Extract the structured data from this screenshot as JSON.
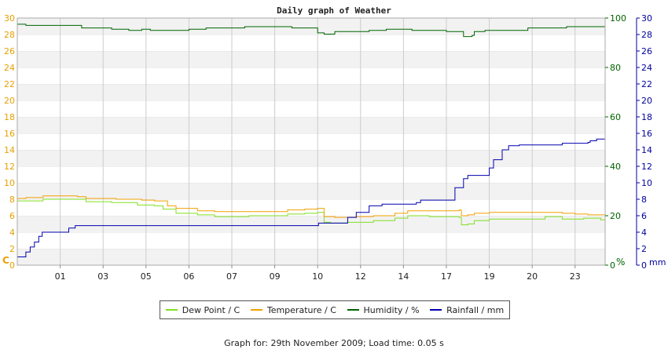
{
  "chart_data": {
    "type": "line",
    "title": "Daily graph of Weather",
    "x_labels": [
      "01",
      "03",
      "05",
      "06",
      "07",
      "09",
      "10",
      "12",
      "14",
      "17",
      "19",
      "20",
      "23"
    ],
    "x_range": [
      0,
      13.7
    ],
    "grid": true,
    "legend_position": "bottom",
    "axes": {
      "left": {
        "unit": "C",
        "ylim": [
          0,
          30
        ],
        "ticks": [
          0,
          2,
          4,
          6,
          8,
          10,
          12,
          14,
          16,
          18,
          20,
          22,
          24,
          26,
          28,
          30
        ],
        "color": "#e8a000"
      },
      "humidity": {
        "unit": "%",
        "ylim": [
          0,
          100
        ],
        "ticks": [
          0,
          20,
          40,
          60,
          80,
          100
        ],
        "color": "#006400"
      },
      "rainfall": {
        "unit": "mm",
        "ylim": [
          0,
          30
        ],
        "ticks": [
          0,
          2,
          4,
          6,
          8,
          10,
          12,
          14,
          16,
          18,
          20,
          22,
          24,
          26,
          28,
          30
        ],
        "color": "#0000a0"
      }
    },
    "series": [
      {
        "name": "Dew Point / C",
        "axis": "left",
        "color": "#80e020",
        "points": [
          [
            0,
            7.8
          ],
          [
            0.6,
            8.0
          ],
          [
            1.4,
            8.0
          ],
          [
            1.6,
            7.7
          ],
          [
            2.2,
            7.6
          ],
          [
            2.8,
            7.3
          ],
          [
            3.2,
            7.2
          ],
          [
            3.4,
            6.8
          ],
          [
            3.7,
            6.3
          ],
          [
            4.2,
            6.1
          ],
          [
            4.6,
            5.9
          ],
          [
            5.4,
            6.0
          ],
          [
            6.3,
            6.2
          ],
          [
            6.7,
            6.3
          ],
          [
            7.0,
            6.4
          ],
          [
            7.15,
            5.2
          ],
          [
            7.3,
            5.1
          ],
          [
            7.5,
            5.1
          ],
          [
            7.7,
            5.2
          ],
          [
            8.3,
            5.4
          ],
          [
            8.8,
            5.7
          ],
          [
            9.1,
            6.0
          ],
          [
            9.6,
            5.9
          ],
          [
            10.3,
            5.8
          ],
          [
            10.35,
            4.9
          ],
          [
            10.5,
            5.0
          ],
          [
            10.65,
            5.4
          ],
          [
            11.0,
            5.6
          ],
          [
            12.3,
            5.9
          ],
          [
            12.7,
            5.6
          ],
          [
            13.1,
            5.6
          ],
          [
            13.2,
            5.7
          ],
          [
            13.6,
            5.5
          ],
          [
            13.7,
            5.5
          ]
        ]
      },
      {
        "name": "Temperature / C",
        "axis": "left",
        "color": "#f0a000",
        "points": [
          [
            0,
            8.1
          ],
          [
            0.2,
            8.2
          ],
          [
            0.6,
            8.4
          ],
          [
            1.0,
            8.4
          ],
          [
            1.4,
            8.3
          ],
          [
            1.6,
            8.1
          ],
          [
            2.3,
            8.0
          ],
          [
            2.9,
            7.9
          ],
          [
            3.2,
            7.8
          ],
          [
            3.5,
            7.2
          ],
          [
            3.7,
            6.9
          ],
          [
            4.2,
            6.6
          ],
          [
            4.6,
            6.5
          ],
          [
            5.4,
            6.5
          ],
          [
            6.3,
            6.7
          ],
          [
            6.7,
            6.8
          ],
          [
            7.0,
            6.9
          ],
          [
            7.15,
            5.9
          ],
          [
            7.4,
            5.8
          ],
          [
            7.9,
            5.9
          ],
          [
            8.3,
            6.0
          ],
          [
            8.8,
            6.3
          ],
          [
            9.1,
            6.6
          ],
          [
            10.3,
            6.7
          ],
          [
            10.35,
            6.0
          ],
          [
            10.5,
            6.1
          ],
          [
            10.65,
            6.3
          ],
          [
            11.0,
            6.4
          ],
          [
            12.3,
            6.4
          ],
          [
            12.7,
            6.3
          ],
          [
            13.0,
            6.2
          ],
          [
            13.3,
            6.1
          ],
          [
            13.7,
            6.1
          ]
        ]
      },
      {
        "name": "Humidity / %",
        "axis": "humidity",
        "color": "#006400",
        "points": [
          [
            0,
            97.5
          ],
          [
            0.2,
            97
          ],
          [
            1.0,
            97
          ],
          [
            1.5,
            96
          ],
          [
            2.2,
            95.5
          ],
          [
            2.6,
            95
          ],
          [
            2.9,
            95.5
          ],
          [
            3.1,
            95
          ],
          [
            4.0,
            95.5
          ],
          [
            4.4,
            96
          ],
          [
            5.3,
            96.5
          ],
          [
            6.4,
            96
          ],
          [
            6.8,
            96
          ],
          [
            7.0,
            94
          ],
          [
            7.15,
            93.5
          ],
          [
            7.4,
            94.5
          ],
          [
            7.7,
            94.5
          ],
          [
            8.2,
            95
          ],
          [
            8.6,
            95.5
          ],
          [
            9.2,
            95
          ],
          [
            10.0,
            94.5
          ],
          [
            10.4,
            94
          ],
          [
            10.4,
            92.5
          ],
          [
            10.6,
            93
          ],
          [
            10.65,
            94.5
          ],
          [
            10.9,
            95
          ],
          [
            11.6,
            95
          ],
          [
            11.9,
            96
          ],
          [
            12.8,
            96.5
          ],
          [
            13.3,
            96.5
          ],
          [
            13.7,
            97
          ]
        ]
      },
      {
        "name": "Rainfall / mm",
        "axis": "rainfall",
        "color": "#0000b0",
        "points": [
          [
            0,
            1.0
          ],
          [
            0.18,
            1.0
          ],
          [
            0.2,
            1.6
          ],
          [
            0.3,
            2.2
          ],
          [
            0.4,
            2.8
          ],
          [
            0.5,
            3.5
          ],
          [
            0.58,
            4.0
          ],
          [
            1.2,
            4.5
          ],
          [
            1.35,
            4.8
          ],
          [
            7.0,
            4.8
          ],
          [
            7.02,
            5.1
          ],
          [
            7.5,
            5.1
          ],
          [
            7.7,
            5.8
          ],
          [
            7.9,
            6.4
          ],
          [
            8.2,
            7.2
          ],
          [
            8.5,
            7.4
          ],
          [
            9.3,
            7.6
          ],
          [
            9.4,
            7.9
          ],
          [
            10.0,
            7.9
          ],
          [
            10.2,
            9.4
          ],
          [
            10.4,
            10.5
          ],
          [
            10.5,
            10.9
          ],
          [
            10.9,
            10.9
          ],
          [
            11.0,
            11.8
          ],
          [
            11.1,
            12.8
          ],
          [
            11.3,
            14.0
          ],
          [
            11.45,
            14.5
          ],
          [
            11.7,
            14.6
          ],
          [
            12.5,
            14.6
          ],
          [
            12.7,
            14.8
          ],
          [
            13.3,
            14.9
          ],
          [
            13.35,
            15.1
          ],
          [
            13.5,
            15.3
          ],
          [
            13.7,
            15.3
          ]
        ]
      }
    ]
  },
  "legend": {
    "dew": "Dew Point / C",
    "temp": "Temperature / C",
    "hum": "Humidity / %",
    "rain": "Rainfall / mm"
  },
  "footer": "Graph for: 29th November 2009; Load time: 0.05 s"
}
